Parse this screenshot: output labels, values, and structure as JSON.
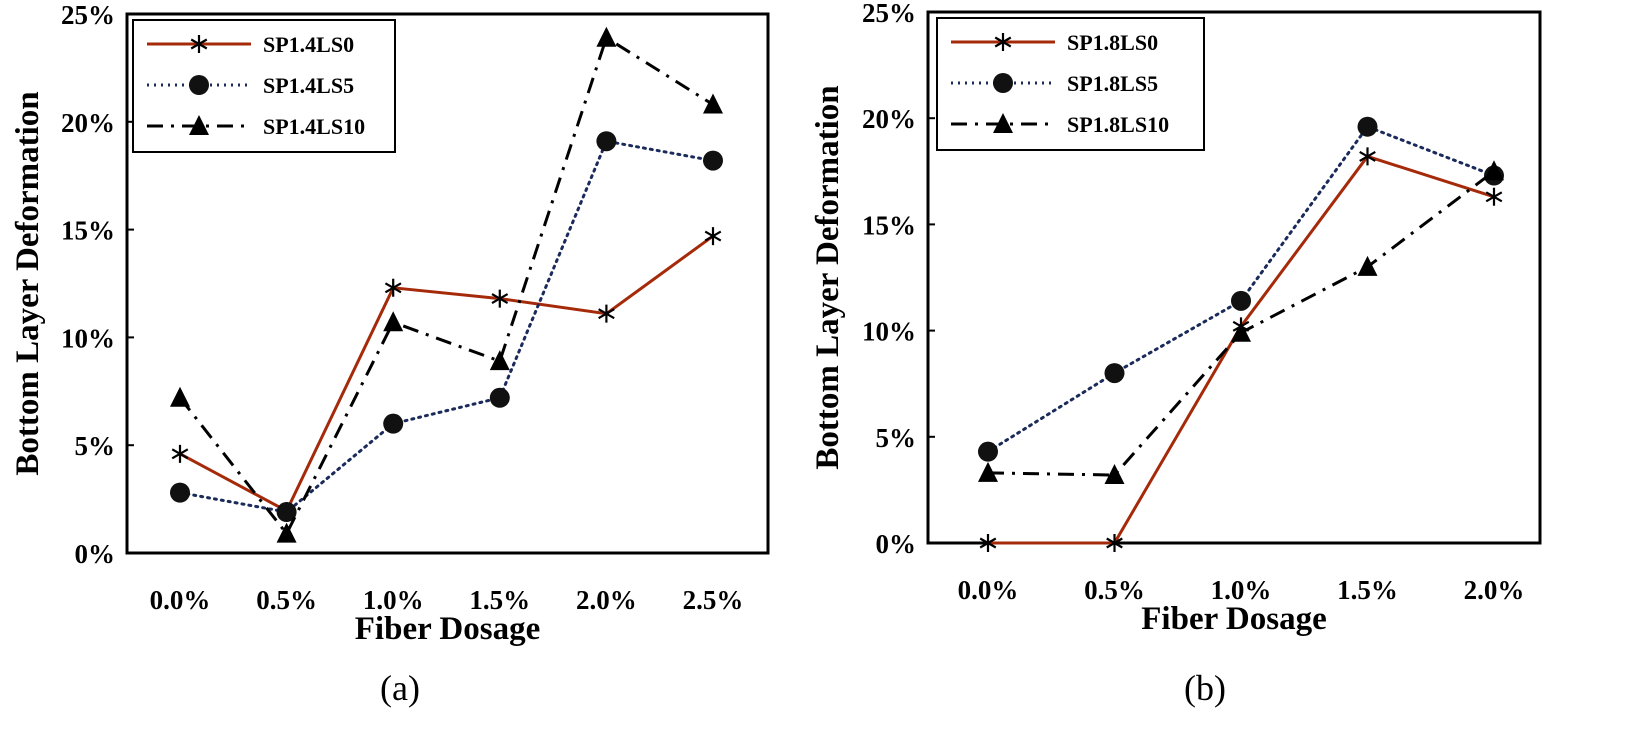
{
  "chart_data": [
    {
      "type": "line",
      "caption": "(a)",
      "xlabel": "Fiber Dosage",
      "ylabel": "Bottom Layer Deformation",
      "categories": [
        "0.0%",
        "0.5%",
        "1.0%",
        "1.5%",
        "2.0%",
        "2.5%"
      ],
      "yticks": [
        "0%",
        "5%",
        "10%",
        "15%",
        "20%",
        "25%"
      ],
      "ylim": [
        0,
        25
      ],
      "y_unit": "%",
      "grid": false,
      "legend_position": "top-left",
      "series": [
        {
          "name": "SP1.4LS0",
          "marker": "asterisk",
          "line": "solid",
          "color": "#a52a0a",
          "values": [
            4.6,
            1.95,
            12.3,
            11.8,
            11.1,
            14.7
          ]
        },
        {
          "name": "SP1.4LS5",
          "marker": "circle",
          "line": "dotted",
          "color": "#1a2a5a",
          "values": [
            2.8,
            1.9,
            6.0,
            7.2,
            19.1,
            18.2
          ]
        },
        {
          "name": "SP1.4LS10",
          "marker": "triangle",
          "line": "dash-dot",
          "color": "#000000",
          "values": [
            7.2,
            0.9,
            10.7,
            8.9,
            23.9,
            20.8
          ]
        }
      ]
    },
    {
      "type": "line",
      "caption": "(b)",
      "xlabel": "Fiber Dosage",
      "ylabel": "Bottom Layer Deformation",
      "categories": [
        "0.0%",
        "0.5%",
        "1.0%",
        "1.5%",
        "2.0%"
      ],
      "yticks": [
        "0%",
        "5%",
        "10%",
        "15%",
        "20%",
        "25%"
      ],
      "ylim": [
        0,
        25
      ],
      "y_unit": "%",
      "grid": false,
      "legend_position": "top-left",
      "series": [
        {
          "name": "SP1.8LS0",
          "marker": "asterisk",
          "line": "solid",
          "color": "#a52a0a",
          "values": [
            0,
            0,
            10.2,
            18.2,
            16.3
          ]
        },
        {
          "name": "SP1.8LS5",
          "marker": "circle",
          "line": "dotted",
          "color": "#1a2a5a",
          "values": [
            4.3,
            8.0,
            11.4,
            19.6,
            17.3
          ]
        },
        {
          "name": "SP1.8LS10",
          "marker": "triangle",
          "line": "dash-dot",
          "color": "#000000",
          "values": [
            3.3,
            3.2,
            9.9,
            13.0,
            17.5
          ]
        }
      ]
    }
  ]
}
